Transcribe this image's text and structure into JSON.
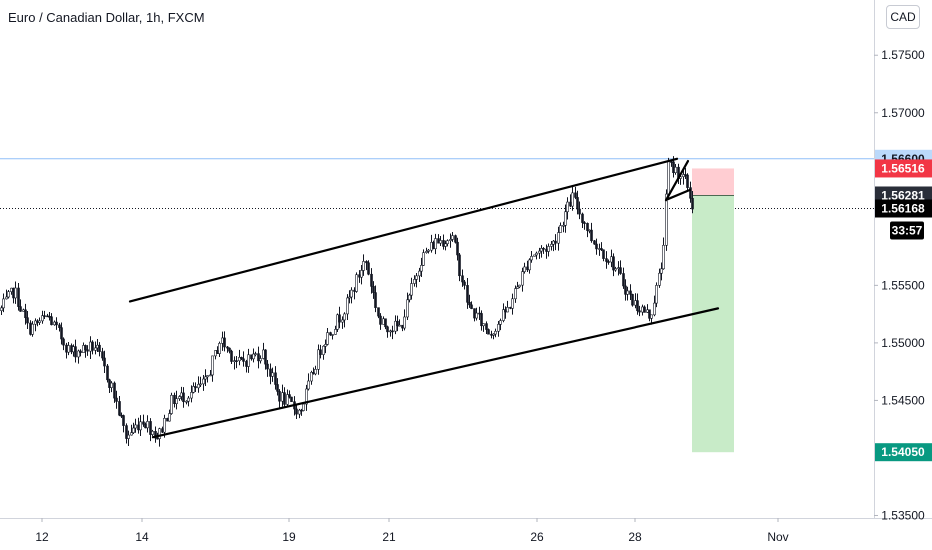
{
  "header": {
    "title": "Euro / Canadian Dollar, 1h, FXCM",
    "currency": "CAD"
  },
  "colors": {
    "candle": "#131722",
    "stop_zone": "#ffcdd2",
    "target_zone": "#c8ebc8",
    "bid_label": "#f23645",
    "entry_label": "#2a2e39",
    "target_label": "#089981",
    "resistance_label": "#bbd9fb",
    "resistance_line": "#90bff9"
  },
  "chart_data": {
    "type": "candlestick",
    "symbol": "Euro / Canadian Dollar",
    "timeframe": "1h",
    "source": "FXCM",
    "x_ticks": [
      "12",
      "14",
      "19",
      "21",
      "26",
      "28",
      "Nov"
    ],
    "y_ticks": [
      "1.57500",
      "1.57000",
      "1.55500",
      "1.55000",
      "1.54500",
      "1.53500"
    ],
    "ylim": [
      1.532,
      1.5798
    ],
    "price_labels": [
      {
        "id": "resistance",
        "text": "1.56600",
        "value": 1.566
      },
      {
        "id": "bid",
        "text": "1.56516",
        "value": 1.56516
      },
      {
        "id": "entry",
        "text": "1.56281",
        "value": 1.56281
      },
      {
        "id": "current",
        "text": "1.56168",
        "value": 1.56168
      },
      {
        "id": "countdown",
        "text": "33:57"
      },
      {
        "id": "target",
        "text": "1.54050",
        "value": 1.5405
      }
    ],
    "price_path": [
      [
        0,
        1.5528
      ],
      [
        14,
        1.5546
      ],
      [
        28,
        1.5512
      ],
      [
        48,
        1.5523
      ],
      [
        70,
        1.5492
      ],
      [
        95,
        1.5497
      ],
      [
        112,
        1.546
      ],
      [
        126,
        1.5418
      ],
      [
        142,
        1.5434
      ],
      [
        158,
        1.5418
      ],
      [
        172,
        1.545
      ],
      [
        190,
        1.5456
      ],
      [
        205,
        1.5465
      ],
      [
        220,
        1.5503
      ],
      [
        238,
        1.5482
      ],
      [
        262,
        1.5492
      ],
      [
        278,
        1.5455
      ],
      [
        300,
        1.544
      ],
      [
        322,
        1.55
      ],
      [
        345,
        1.553
      ],
      [
        365,
        1.5573
      ],
      [
        380,
        1.5516
      ],
      [
        400,
        1.5513
      ],
      [
        420,
        1.5572
      ],
      [
        435,
        1.5588
      ],
      [
        452,
        1.5592
      ],
      [
        468,
        1.5532
      ],
      [
        490,
        1.5508
      ],
      [
        508,
        1.553
      ],
      [
        530,
        1.5576
      ],
      [
        552,
        1.5585
      ],
      [
        572,
        1.5627
      ],
      [
        592,
        1.559
      ],
      [
        612,
        1.557
      ],
      [
        632,
        1.5536
      ],
      [
        650,
        1.5523
      ],
      [
        662,
        1.557
      ],
      [
        668,
        1.5655
      ],
      [
        677,
        1.5649
      ],
      [
        686,
        1.564
      ],
      [
        693,
        1.5617
      ]
    ],
    "channel_upper": [
      [
        130,
        1.5536
      ],
      [
        677,
        1.566
      ]
    ],
    "channel_lower": [
      [
        153,
        1.5418
      ],
      [
        718,
        1.553
      ]
    ],
    "wedge_lines": [
      [
        [
          666,
          1.5624
        ],
        [
          688,
          1.5658
        ]
      ],
      [
        [
          668,
          1.5625
        ],
        [
          690,
          1.5633
        ]
      ]
    ],
    "risk_reward": {
      "entry": 1.56281,
      "stop": 1.56516,
      "target": 1.5405
    }
  }
}
